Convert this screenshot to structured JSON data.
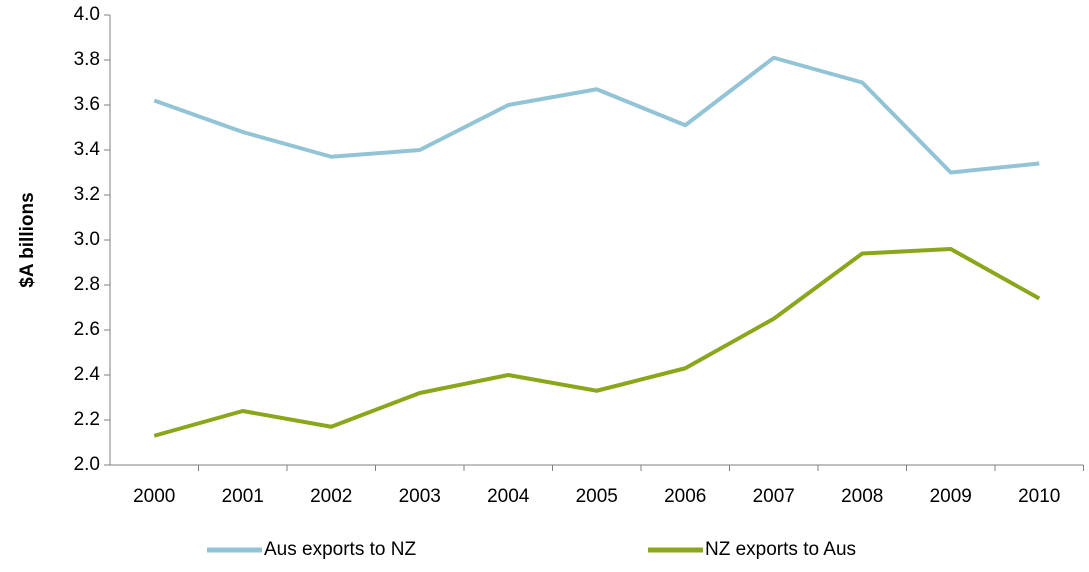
{
  "chart_data": {
    "type": "line",
    "y_label": "$A billions",
    "categories": [
      "2000",
      "2001",
      "2002",
      "2003",
      "2004",
      "2005",
      "2006",
      "2007",
      "2008",
      "2009",
      "2010"
    ],
    "series": [
      {
        "name": "Aus exports to NZ",
        "color": "#93c4d6",
        "values": [
          3.62,
          3.48,
          3.37,
          3.4,
          3.6,
          3.67,
          3.51,
          3.81,
          3.7,
          3.3,
          3.34
        ]
      },
      {
        "name": "NZ exports to Aus",
        "color": "#8aa61b",
        "values": [
          2.13,
          2.24,
          2.17,
          2.32,
          2.4,
          2.33,
          2.43,
          2.65,
          2.94,
          2.96,
          2.74
        ]
      }
    ],
    "ylim": [
      2.0,
      4.0
    ],
    "yticks": [
      {
        "value": 2,
        "label": "2.0"
      },
      2.2,
      2.4,
      2.6,
      2.8,
      {
        "value": 3,
        "label": "3.0"
      },
      3.2,
      3.4,
      3.6,
      3.8,
      {
        "value": 4,
        "label": "4.0"
      }
    ],
    "grid": false,
    "legend": "bottom"
  }
}
